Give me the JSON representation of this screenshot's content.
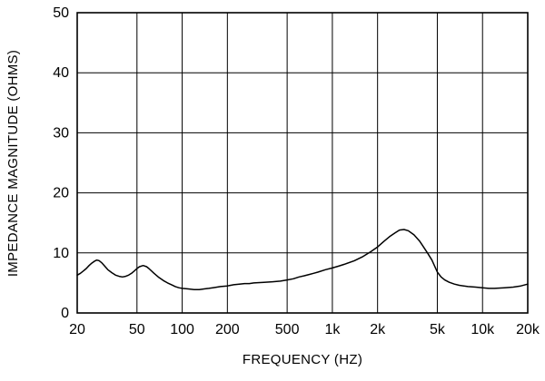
{
  "chart_data": {
    "type": "line",
    "title": "",
    "xlabel": "FREQUENCY (HZ)",
    "ylabel": "IMPEDANCE MAGNITUDE (OHMS)",
    "x_scale": "log",
    "y_scale": "linear",
    "xlim": [
      20,
      20000
    ],
    "ylim": [
      0,
      50
    ],
    "grid": true,
    "legend": "none",
    "line_color": "#000000",
    "grid_color": "#000000",
    "x_ticks": [
      {
        "value": 20,
        "label": "20"
      },
      {
        "value": 50,
        "label": "50"
      },
      {
        "value": 100,
        "label": "100"
      },
      {
        "value": 200,
        "label": "200"
      },
      {
        "value": 500,
        "label": "500"
      },
      {
        "value": 1000,
        "label": "1k"
      },
      {
        "value": 2000,
        "label": "2k"
      },
      {
        "value": 5000,
        "label": "5k"
      },
      {
        "value": 10000,
        "label": "10k"
      },
      {
        "value": 20000,
        "label": "20k"
      }
    ],
    "y_ticks": [
      0,
      10,
      20,
      30,
      40,
      50
    ],
    "series": [
      {
        "name": "impedance-magnitude",
        "x": [
          20,
          21,
          22,
          23,
          24,
          25,
          26,
          27,
          28,
          29,
          30,
          32,
          34,
          36,
          38,
          40,
          42,
          44,
          46,
          48,
          50,
          52,
          55,
          58,
          60,
          65,
          70,
          75,
          80,
          85,
          90,
          95,
          100,
          110,
          120,
          130,
          140,
          150,
          160,
          180,
          200,
          220,
          240,
          260,
          280,
          300,
          350,
          400,
          450,
          500,
          550,
          600,
          650,
          700,
          750,
          800,
          900,
          1000,
          1100,
          1200,
          1400,
          1600,
          1800,
          2000,
          2200,
          2400,
          2600,
          2800,
          3000,
          3200,
          3500,
          3800,
          4000,
          4300,
          4600,
          5000,
          5300,
          5600,
          6000,
          6500,
          7000,
          8000,
          9000,
          10000,
          11000,
          12000,
          14000,
          16000,
          18000,
          20000
        ],
        "y": [
          6.3,
          6.6,
          7.0,
          7.4,
          7.9,
          8.3,
          8.6,
          8.8,
          8.7,
          8.4,
          8.0,
          7.2,
          6.7,
          6.3,
          6.1,
          6.0,
          6.1,
          6.3,
          6.6,
          7.0,
          7.4,
          7.7,
          7.9,
          7.7,
          7.4,
          6.6,
          5.9,
          5.4,
          5.0,
          4.7,
          4.4,
          4.2,
          4.1,
          4.0,
          3.9,
          3.9,
          4.0,
          4.1,
          4.2,
          4.4,
          4.5,
          4.7,
          4.8,
          4.9,
          4.9,
          5.0,
          5.1,
          5.2,
          5.3,
          5.5,
          5.7,
          6.0,
          6.2,
          6.4,
          6.6,
          6.8,
          7.2,
          7.5,
          7.8,
          8.1,
          8.7,
          9.4,
          10.2,
          11.0,
          11.9,
          12.7,
          13.3,
          13.8,
          13.9,
          13.7,
          13.0,
          12.0,
          11.2,
          10.0,
          8.8,
          6.8,
          6.0,
          5.5,
          5.1,
          4.8,
          4.6,
          4.4,
          4.3,
          4.2,
          4.1,
          4.1,
          4.2,
          4.3,
          4.5,
          4.8
        ]
      }
    ]
  }
}
